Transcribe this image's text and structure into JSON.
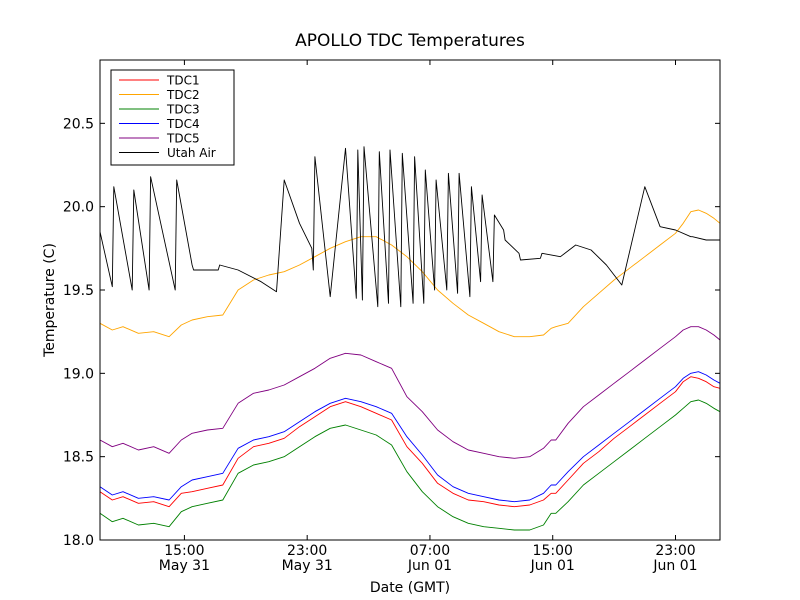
{
  "chart_data": {
    "type": "line",
    "title": "APOLLO TDC Temperatures",
    "xlabel": "Date (GMT)",
    "ylabel": "Temperature (C)",
    "x_unit": "hours since May 31 00:00 GMT",
    "xlim": [
      9.5,
      49.9
    ],
    "ylim": [
      18.0,
      20.88
    ],
    "grid": false,
    "legend_position": "upper-left",
    "y_ticks": [
      18.0,
      18.5,
      19.0,
      19.5,
      20.0,
      20.5
    ],
    "y_tick_labels": [
      "18.0",
      "18.5",
      "19.0",
      "19.5",
      "20.0",
      "20.5"
    ],
    "x_ticks": [
      {
        "x": 15,
        "time": "15:00",
        "date": "May 31"
      },
      {
        "x": 23,
        "time": "23:00",
        "date": "May 31"
      },
      {
        "x": 31,
        "time": "07:00",
        "date": "Jun 01"
      },
      {
        "x": 39,
        "time": "15:00",
        "date": "Jun 01"
      },
      {
        "x": 47,
        "time": "23:00",
        "date": "Jun 01"
      }
    ],
    "series": [
      {
        "name": "TDC1",
        "color": "#ff0000",
        "x": [
          9.5,
          10.3,
          11.0,
          12.0,
          13.0,
          14.0,
          14.8,
          15.5,
          16.5,
          17.5,
          18.5,
          19.5,
          20.5,
          21.5,
          22.5,
          23.5,
          24.5,
          25.5,
          26.5,
          27.5,
          28.5,
          29.5,
          30.5,
          31.5,
          32.5,
          33.5,
          34.5,
          35.5,
          36.5,
          37.5,
          38.4,
          38.9,
          39.2,
          40.0,
          41.0,
          42.0,
          43.0,
          44.0,
          45.0,
          46.0,
          47.0,
          47.5,
          48.0,
          48.5,
          49.0,
          49.5,
          49.9
        ],
        "values": [
          18.29,
          18.24,
          18.26,
          18.22,
          18.23,
          18.2,
          18.28,
          18.29,
          18.31,
          18.33,
          18.49,
          18.56,
          18.58,
          18.61,
          18.68,
          18.74,
          18.8,
          18.83,
          18.8,
          18.76,
          18.72,
          18.56,
          18.46,
          18.34,
          18.28,
          18.24,
          18.23,
          18.21,
          18.2,
          18.21,
          18.24,
          18.28,
          18.28,
          18.36,
          18.46,
          18.53,
          18.61,
          18.68,
          18.75,
          18.82,
          18.89,
          18.95,
          18.98,
          18.97,
          18.95,
          18.92,
          18.91
        ]
      },
      {
        "name": "TDC2",
        "color": "#ffa500",
        "x": [
          9.5,
          10.3,
          11.0,
          12.0,
          13.0,
          14.0,
          14.8,
          15.5,
          16.5,
          17.5,
          18.5,
          19.5,
          20.5,
          21.5,
          22.5,
          23.5,
          24.5,
          25.5,
          26.5,
          27.5,
          28.5,
          29.5,
          30.5,
          31.5,
          32.5,
          33.5,
          34.5,
          35.5,
          36.5,
          37.5,
          38.4,
          38.9,
          39.2,
          40.0,
          41.0,
          42.0,
          43.0,
          44.0,
          45.0,
          46.0,
          47.0,
          47.5,
          48.0,
          48.5,
          49.0,
          49.5,
          49.9
        ],
        "values": [
          19.3,
          19.26,
          19.28,
          19.24,
          19.25,
          19.22,
          19.29,
          19.32,
          19.34,
          19.35,
          19.5,
          19.56,
          19.59,
          19.61,
          19.65,
          19.7,
          19.75,
          19.79,
          19.82,
          19.82,
          19.77,
          19.7,
          19.61,
          19.5,
          19.42,
          19.35,
          19.3,
          19.25,
          19.22,
          19.22,
          19.23,
          19.27,
          19.28,
          19.3,
          19.4,
          19.48,
          19.56,
          19.63,
          19.7,
          19.77,
          19.84,
          19.9,
          19.97,
          19.98,
          19.96,
          19.93,
          19.9
        ]
      },
      {
        "name": "TDC3",
        "color": "#008000",
        "x": [
          9.5,
          10.3,
          11.0,
          12.0,
          13.0,
          14.0,
          14.8,
          15.5,
          16.5,
          17.5,
          18.5,
          19.5,
          20.5,
          21.5,
          22.5,
          23.5,
          24.5,
          25.5,
          26.5,
          27.5,
          28.5,
          29.5,
          30.5,
          31.5,
          32.5,
          33.5,
          34.5,
          35.5,
          36.5,
          37.5,
          38.4,
          38.9,
          39.2,
          40.0,
          41.0,
          42.0,
          43.0,
          44.0,
          45.0,
          46.0,
          47.0,
          47.5,
          48.0,
          48.5,
          49.0,
          49.5,
          49.9
        ],
        "values": [
          18.16,
          18.11,
          18.13,
          18.09,
          18.1,
          18.08,
          18.17,
          18.2,
          18.22,
          18.24,
          18.4,
          18.45,
          18.47,
          18.5,
          18.56,
          18.62,
          18.67,
          18.69,
          18.66,
          18.63,
          18.57,
          18.41,
          18.29,
          18.2,
          18.14,
          18.1,
          18.08,
          18.07,
          18.06,
          18.06,
          18.09,
          18.16,
          18.16,
          18.23,
          18.33,
          18.4,
          18.47,
          18.54,
          18.61,
          18.68,
          18.75,
          18.79,
          18.83,
          18.84,
          18.82,
          18.79,
          18.77
        ]
      },
      {
        "name": "TDC4",
        "color": "#0000ff",
        "x": [
          9.5,
          10.3,
          11.0,
          12.0,
          13.0,
          14.0,
          14.8,
          15.5,
          16.5,
          17.5,
          18.5,
          19.5,
          20.5,
          21.5,
          22.5,
          23.5,
          24.5,
          25.5,
          26.5,
          27.5,
          28.5,
          29.5,
          30.5,
          31.5,
          32.5,
          33.5,
          34.5,
          35.5,
          36.5,
          37.5,
          38.4,
          38.9,
          39.2,
          40.0,
          41.0,
          42.0,
          43.0,
          44.0,
          45.0,
          46.0,
          47.0,
          47.5,
          48.0,
          48.5,
          49.0,
          49.5,
          49.9
        ],
        "values": [
          18.32,
          18.27,
          18.29,
          18.25,
          18.26,
          18.24,
          18.32,
          18.36,
          18.38,
          18.4,
          18.55,
          18.6,
          18.62,
          18.65,
          18.71,
          18.77,
          18.82,
          18.85,
          18.83,
          18.8,
          18.76,
          18.62,
          18.51,
          18.39,
          18.32,
          18.28,
          18.26,
          18.24,
          18.23,
          18.24,
          18.28,
          18.33,
          18.33,
          18.41,
          18.5,
          18.57,
          18.64,
          18.71,
          18.78,
          18.85,
          18.92,
          18.97,
          19.0,
          19.01,
          18.99,
          18.96,
          18.94
        ]
      },
      {
        "name": "TDC5",
        "color": "#800080",
        "x": [
          9.5,
          10.3,
          11.0,
          12.0,
          13.0,
          14.0,
          14.8,
          15.5,
          16.5,
          17.5,
          18.5,
          19.5,
          20.5,
          21.5,
          22.5,
          23.5,
          24.5,
          25.5,
          26.5,
          27.5,
          28.5,
          29.5,
          30.5,
          31.5,
          32.5,
          33.5,
          34.5,
          35.5,
          36.5,
          37.5,
          38.4,
          38.9,
          39.2,
          40.0,
          41.0,
          42.0,
          43.0,
          44.0,
          45.0,
          46.0,
          47.0,
          47.5,
          48.0,
          48.5,
          49.0,
          49.5,
          49.9
        ],
        "values": [
          18.6,
          18.56,
          18.58,
          18.54,
          18.56,
          18.52,
          18.6,
          18.64,
          18.66,
          18.67,
          18.82,
          18.88,
          18.9,
          18.93,
          18.98,
          19.03,
          19.09,
          19.12,
          19.11,
          19.07,
          19.03,
          18.86,
          18.77,
          18.66,
          18.59,
          18.54,
          18.52,
          18.5,
          18.49,
          18.5,
          18.55,
          18.6,
          18.6,
          18.7,
          18.8,
          18.87,
          18.94,
          19.01,
          19.08,
          19.15,
          19.22,
          19.26,
          19.28,
          19.28,
          19.26,
          19.23,
          19.2
        ]
      },
      {
        "name": "Utah Air",
        "color": "#000000",
        "x": [
          9.5,
          10.3,
          10.4,
          11.6,
          11.7,
          12.7,
          12.8,
          14.4,
          14.5,
          15.5,
          15.6,
          17.2,
          17.3,
          18.5,
          20.0,
          21.0,
          21.5,
          22.5,
          23.3,
          23.4,
          23.5,
          24.5,
          25.5,
          26.2,
          26.3,
          26.6,
          26.7,
          27.6,
          27.7,
          28.3,
          28.4,
          29.1,
          29.2,
          29.9,
          30.0,
          30.6,
          30.7,
          31.3,
          31.4,
          32.1,
          32.2,
          32.8,
          32.9,
          33.6,
          33.7,
          34.3,
          34.4,
          35.1,
          35.2,
          35.8,
          35.9,
          36.8,
          36.9,
          38.2,
          38.3,
          39.5,
          40.5,
          41.5,
          42.5,
          43.5,
          45.0,
          46.0,
          47.0,
          48.0,
          48.1,
          49.0,
          49.9
        ],
        "values": [
          19.85,
          19.52,
          20.12,
          19.5,
          20.1,
          19.5,
          20.18,
          19.5,
          20.16,
          19.65,
          19.62,
          19.62,
          19.65,
          19.62,
          19.55,
          19.49,
          20.16,
          19.9,
          19.75,
          19.62,
          20.3,
          19.46,
          20.35,
          19.45,
          20.34,
          19.44,
          20.36,
          19.4,
          20.33,
          19.42,
          20.34,
          19.4,
          20.32,
          19.42,
          20.3,
          19.42,
          20.22,
          19.5,
          20.16,
          19.5,
          20.2,
          19.48,
          20.2,
          19.46,
          20.12,
          19.55,
          20.07,
          19.55,
          19.95,
          19.86,
          19.8,
          19.72,
          19.68,
          19.69,
          19.72,
          19.7,
          19.77,
          19.74,
          19.65,
          19.53,
          20.12,
          19.88,
          19.86,
          19.82,
          19.82,
          19.8,
          19.8
        ]
      }
    ]
  }
}
